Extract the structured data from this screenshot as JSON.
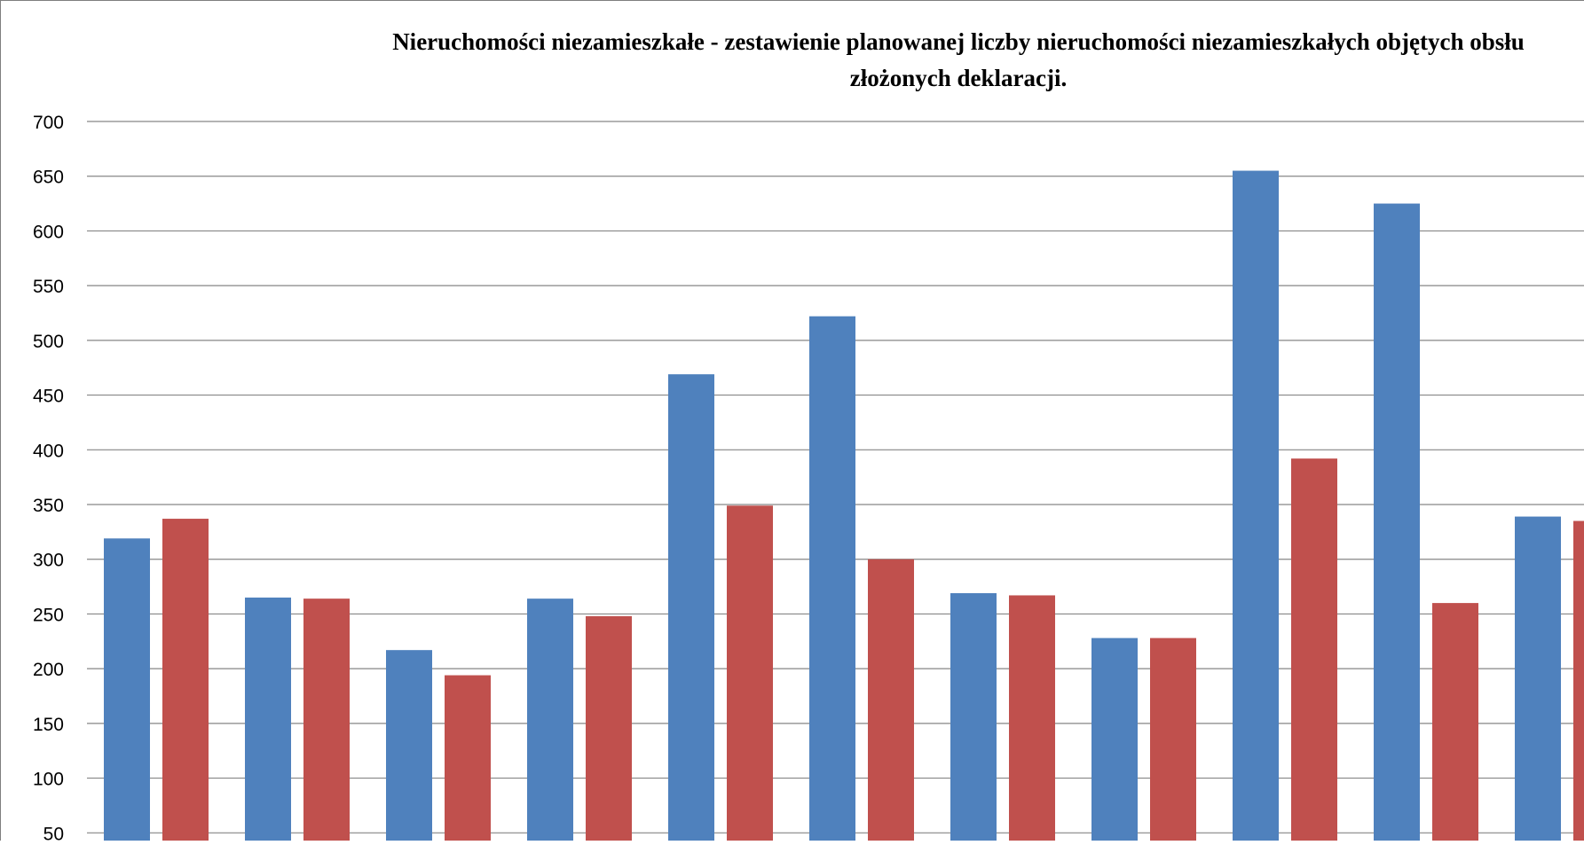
{
  "chart_data": {
    "type": "bar",
    "title_lines": [
      "Nieruchomości niezamieszkałe - zestawienie planowanej liczby nieruchomości niezamieszkałych objętych obsłu",
      "złożonych deklaracji."
    ],
    "xlabel": "",
    "ylabel": "",
    "ylim": [
      50,
      700
    ],
    "yticks": [
      50,
      100,
      150,
      200,
      250,
      300,
      350,
      400,
      450,
      500,
      550,
      600,
      650,
      700
    ],
    "grid": true,
    "series": [
      {
        "color": "#4F81BD",
        "values": [
          319,
          265,
          217,
          264,
          469,
          522,
          269,
          228,
          655,
          625,
          339
        ]
      },
      {
        "color": "#C0504D",
        "values": [
          337,
          264,
          194,
          248,
          349,
          300,
          267,
          228,
          392,
          260,
          335
        ]
      }
    ]
  }
}
